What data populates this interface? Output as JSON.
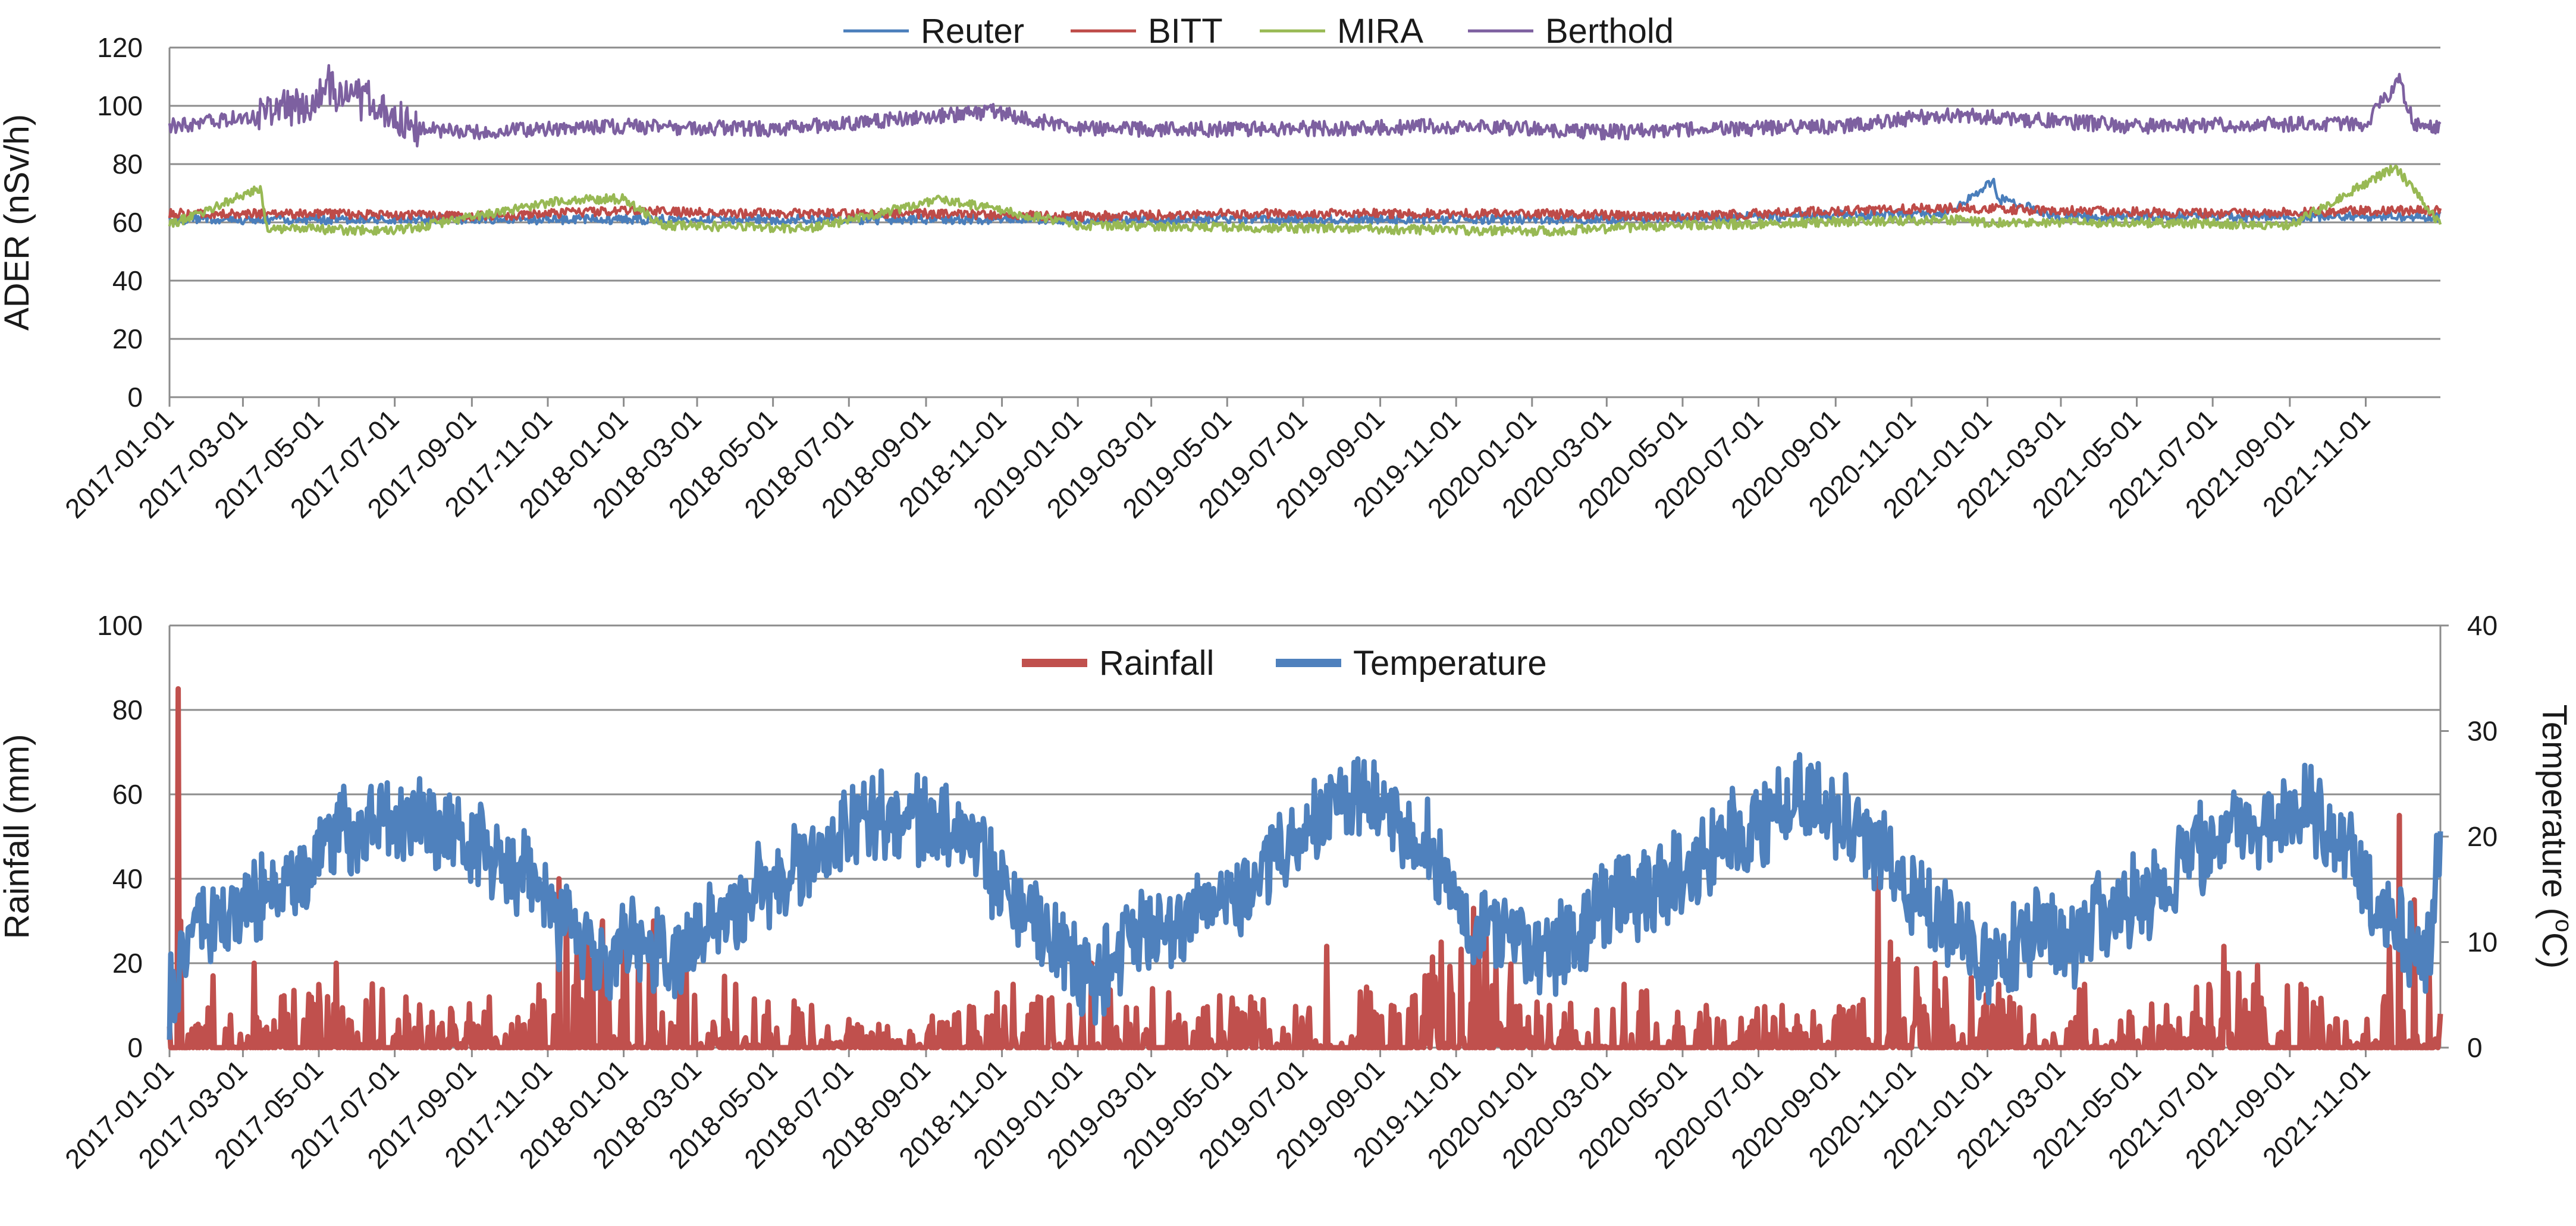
{
  "chart_data": [
    {
      "id": "ader",
      "type": "line",
      "ylabel": "ADER (nSv/h)",
      "xlabel": "",
      "ylim": [
        0,
        120
      ],
      "yticks": [
        0,
        20,
        40,
        60,
        80,
        100,
        120
      ],
      "x_range": [
        "2017-01-01",
        "2021-12-31"
      ],
      "x_ticks": [
        "2017-01-01",
        "2017-03-01",
        "2017-05-01",
        "2017-07-01",
        "2017-09-01",
        "2017-11-01",
        "2018-01-01",
        "2018-03-01",
        "2018-05-01",
        "2018-07-01",
        "2018-09-01",
        "2018-11-01",
        "2019-01-01",
        "2019-03-01",
        "2019-05-01",
        "2019-07-01",
        "2019-09-01",
        "2019-11-01",
        "2020-01-01",
        "2020-03-01",
        "2020-05-01",
        "2020-07-01",
        "2020-09-01",
        "2020-11-01",
        "2021-01-01",
        "2021-03-01",
        "2021-05-01",
        "2021-07-01",
        "2021-09-01",
        "2021-11-01"
      ],
      "grid": true,
      "legend_position": "top-center",
      "series": [
        {
          "name": "Reuter",
          "color": "#4a7ebb",
          "x": [
            "2017-01-01",
            "2017-07-01",
            "2018-01-01",
            "2018-07-01",
            "2019-01-01",
            "2019-07-01",
            "2020-01-01",
            "2020-07-01",
            "2020-12-01",
            "2021-01-06",
            "2021-01-10",
            "2021-03-01",
            "2021-07-01",
            "2021-11-01",
            "2021-12-31"
          ],
          "values": [
            61,
            61,
            61,
            61,
            61,
            61,
            61,
            62,
            63,
            74,
            68,
            62,
            62,
            62,
            62
          ]
        },
        {
          "name": "BITT",
          "color": "#be4b48",
          "x": [
            "2017-01-01",
            "2017-05-01",
            "2017-09-01",
            "2018-01-01",
            "2018-05-01",
            "2018-09-01",
            "2019-01-01",
            "2019-05-01",
            "2019-09-01",
            "2020-01-01",
            "2020-05-01",
            "2020-09-01",
            "2020-12-01",
            "2021-03-01",
            "2021-07-01",
            "2021-11-01",
            "2021-12-31"
          ],
          "values": [
            63,
            63,
            62,
            64,
            63,
            63,
            62,
            63,
            63,
            63,
            62,
            64,
            65,
            64,
            63,
            64,
            64
          ]
        },
        {
          "name": "MIRA",
          "color": "#98b954",
          "x": [
            "2017-01-01",
            "2017-03-15",
            "2017-03-20",
            "2017-07-01",
            "2017-11-20",
            "2017-12-01",
            "2018-01-01",
            "2018-02-01",
            "2018-06-01",
            "2018-09-15",
            "2019-01-01",
            "2019-07-01",
            "2019-12-20",
            "2020-01-10",
            "2020-05-01",
            "2020-12-01",
            "2021-01-01",
            "2021-05-01",
            "2021-09-01",
            "2021-11-25",
            "2021-12-31"
          ],
          "values": [
            59,
            72,
            58,
            57,
            68,
            68,
            68,
            59,
            58,
            68,
            59,
            58,
            57,
            57,
            59,
            61,
            60,
            60,
            59,
            79,
            59
          ]
        },
        {
          "name": "Berthold",
          "color": "#7d60a0",
          "x": [
            "2017-01-01",
            "2017-03-01",
            "2017-04-20",
            "2017-05-10",
            "2017-06-15",
            "2017-07-15",
            "2017-09-01",
            "2018-01-01",
            "2018-05-01",
            "2018-10-25",
            "2019-01-01",
            "2019-06-01",
            "2019-11-01",
            "2020-03-01",
            "2020-09-01",
            "2020-12-01",
            "2021-05-01",
            "2021-11-01",
            "2021-11-28",
            "2021-12-10",
            "2021-12-31"
          ],
          "values": [
            93,
            96,
            101,
            106,
            100,
            92,
            91,
            93,
            92,
            98,
            92,
            92,
            93,
            91,
            93,
            97,
            93,
            94,
            109,
            93,
            93
          ]
        }
      ]
    },
    {
      "id": "weather",
      "type": "line",
      "ylabel": "Rainfall (mm)",
      "ylabel_right": "Temperature (°C)",
      "ylabel_right_parts": [
        "Temperature (",
        "o",
        "C)"
      ],
      "xlabel": "",
      "ylim": [
        0,
        100
      ],
      "yticks": [
        0,
        20,
        40,
        60,
        80,
        100
      ],
      "ylim_right": [
        0,
        40
      ],
      "yticks_right": [
        0,
        10,
        20,
        30,
        40
      ],
      "x_range": [
        "2017-01-01",
        "2021-12-31"
      ],
      "x_ticks": [
        "2017-01-01",
        "2017-03-01",
        "2017-05-01",
        "2017-07-01",
        "2017-09-01",
        "2017-11-01",
        "2018-01-01",
        "2018-03-01",
        "2018-05-01",
        "2018-07-01",
        "2018-09-01",
        "2018-11-01",
        "2019-01-01",
        "2019-03-01",
        "2019-05-01",
        "2019-07-01",
        "2019-09-01",
        "2019-11-01",
        "2020-01-01",
        "2020-03-01",
        "2020-05-01",
        "2020-07-01",
        "2020-09-01",
        "2020-11-01",
        "2021-01-01",
        "2021-03-01",
        "2021-05-01",
        "2021-07-01",
        "2021-09-01",
        "2021-11-01"
      ],
      "grid": true,
      "legend_position": "top-center",
      "series": [
        {
          "name": "Rainfall",
          "axis": "left",
          "color": "#c0504d",
          "x": [
            "2017-01-01",
            "2017-01-08",
            "2017-01-10",
            "2017-01-16",
            "2017-02-05",
            "2017-03-10",
            "2017-04-01",
            "2017-05-15",
            "2017-07-10",
            "2017-09-15",
            "2017-10-20",
            "2017-11-10",
            "2017-12-15",
            "2018-01-25",
            "2018-02-20",
            "2018-04-01",
            "2018-06-01",
            "2018-08-01",
            "2018-11-10",
            "2019-01-12",
            "2019-03-15",
            "2019-05-20",
            "2019-07-20",
            "2019-09-10",
            "2019-10-20",
            "2019-11-15",
            "2020-01-15",
            "2020-03-15",
            "2020-05-20",
            "2020-07-20",
            "2020-09-20",
            "2020-10-05",
            "2020-10-15",
            "2020-11-20",
            "2021-01-10",
            "2021-03-20",
            "2021-05-25",
            "2021-07-10",
            "2021-09-10",
            "2021-11-15",
            "2021-11-28",
            "2021-12-10",
            "2021-12-31"
          ],
          "values": [
            5,
            85,
            30,
            3,
            17,
            20,
            12,
            20,
            12,
            12,
            10,
            40,
            30,
            30,
            25,
            15,
            10,
            5,
            15,
            20,
            13,
            12,
            24,
            10,
            25,
            33,
            10,
            15,
            10,
            10,
            10,
            40,
            25,
            20,
            15,
            15,
            10,
            24,
            15,
            10,
            55,
            35,
            8
          ]
        },
        {
          "name": "Temperature",
          "axis": "right",
          "color": "#4f81bd",
          "x": [
            "2017-01-01",
            "2017-01-20",
            "2017-02-15",
            "2017-03-15",
            "2017-04-15",
            "2017-05-15",
            "2017-06-15",
            "2017-07-15",
            "2017-08-15",
            "2017-09-15",
            "2017-10-15",
            "2017-11-10",
            "2017-12-10",
            "2018-01-10",
            "2018-02-10",
            "2018-03-10",
            "2018-04-10",
            "2018-05-10",
            "2018-06-10",
            "2018-07-10",
            "2018-08-10",
            "2018-09-10",
            "2018-10-10",
            "2018-11-10",
            "2018-12-10",
            "2019-01-10",
            "2019-02-10",
            "2019-03-10",
            "2019-04-10",
            "2019-05-10",
            "2019-06-10",
            "2019-07-10",
            "2019-08-15",
            "2019-09-10",
            "2019-10-10",
            "2019-11-10",
            "2019-12-10",
            "2020-01-10",
            "2020-02-10",
            "2020-03-10",
            "2020-04-10",
            "2020-05-10",
            "2020-06-10",
            "2020-07-10",
            "2020-08-10",
            "2020-09-10",
            "2020-10-10",
            "2020-11-10",
            "2020-12-10",
            "2021-01-10",
            "2021-02-10",
            "2021-03-10",
            "2021-04-10",
            "2021-05-10",
            "2021-06-10",
            "2021-07-10",
            "2021-08-10",
            "2021-09-10",
            "2021-10-10",
            "2021-11-10",
            "2021-12-01",
            "2021-12-20",
            "2021-12-31"
          ],
          "values": [
            4,
            12,
            13,
            14,
            16,
            20,
            21,
            21,
            20,
            18,
            17,
            12,
            8,
            10,
            8,
            12,
            14,
            16,
            18,
            22,
            22,
            21,
            19,
            14,
            11,
            6,
            10,
            12,
            13,
            15,
            18,
            22,
            24,
            22,
            19,
            12,
            11,
            9,
            11,
            14,
            15,
            17,
            20,
            22,
            24,
            22,
            18,
            14,
            12,
            7,
            12,
            10,
            13,
            14,
            18,
            20,
            21,
            23,
            20,
            14,
            10,
            8,
            19
          ]
        }
      ]
    }
  ]
}
